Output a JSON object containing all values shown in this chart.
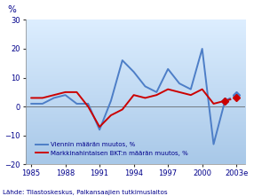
{
  "years_main": [
    1985,
    1986,
    1987,
    1988,
    1989,
    1990,
    1991,
    1992,
    1993,
    1994,
    1995,
    1996,
    1997,
    1998,
    1999,
    2000,
    2001,
    2002
  ],
  "exports_main": [
    1,
    1,
    3,
    4,
    1,
    1,
    -8,
    2,
    16,
    12,
    7,
    5,
    13,
    8,
    6,
    20,
    -13,
    2
  ],
  "gdp_main": [
    3,
    3,
    4,
    5,
    5,
    0,
    -7,
    -3,
    -1,
    4,
    3,
    4,
    6,
    5,
    4,
    6,
    1,
    2
  ],
  "years_forecast": [
    2002,
    2003
  ],
  "exports_forecast": [
    2,
    4
  ],
  "gdp_forecast": [
    2,
    3
  ],
  "xlim": [
    1984.5,
    2003.8
  ],
  "ylim": [
    -20,
    30
  ],
  "yticks": [
    -20,
    -10,
    0,
    10,
    20,
    30
  ],
  "xtick_vals": [
    1985,
    1988,
    1991,
    1994,
    1997,
    2000,
    2003
  ],
  "xtick_labels": [
    "1985",
    "1988",
    "1991",
    "1994",
    "1997",
    "2000",
    "2003e"
  ],
  "exports_color": "#4d7ec7",
  "gdp_color": "#cc0000",
  "forecast_marker": "D",
  "bg_color_top": "#a8c8e8",
  "bg_color_bottom": "#ddeeff",
  "title_y_label": "%",
  "legend1": "Viennin määrän muutos, %",
  "legend2": "Markkinahintaisen BKT:n määrän muutos, %",
  "source": "Lähde: Tilastoskeskus, Palkansaajien tutkimuslaitos",
  "linewidth": 1.4
}
